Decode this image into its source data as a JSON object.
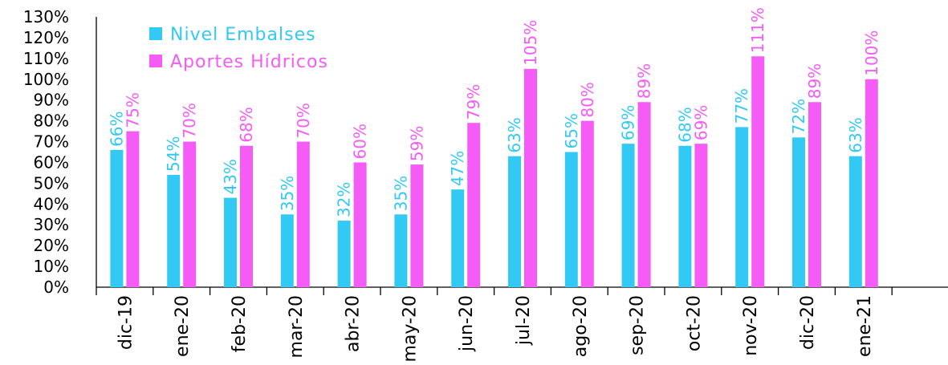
{
  "chart_data": {
    "type": "bar",
    "categories": [
      "dic-19",
      "ene-20",
      "feb-20",
      "mar-20",
      "abr-20",
      "may-20",
      "jun-20",
      "jul-20",
      "ago-20",
      "sep-20",
      "oct-20",
      "nov-20",
      "dic-20",
      "ene-21"
    ],
    "series": [
      {
        "name": "Nivel Embalses",
        "color": "#33c9f5",
        "values": [
          66,
          54,
          43,
          35,
          32,
          35,
          47,
          63,
          65,
          69,
          68,
          77,
          72,
          63
        ],
        "labels": [
          "66%",
          "54%",
          "43%",
          "35%",
          "32%",
          "35%",
          "47%",
          "63%",
          "65%",
          "69%",
          "68%",
          "77%",
          "72%",
          "63%"
        ]
      },
      {
        "name": "Aportes Hídricos",
        "color": "#f55cf5",
        "values": [
          75,
          70,
          68,
          70,
          60,
          59,
          79,
          105,
          80,
          89,
          69,
          111,
          89,
          100
        ],
        "labels": [
          "75%",
          "70%",
          "68%",
          "70%",
          "60%",
          "59%",
          "79%",
          "105%",
          "80%",
          "89%",
          "69%",
          "111%",
          "89%",
          "100%"
        ]
      }
    ],
    "y_ticks": [
      "0%",
      "10%",
      "20%",
      "30%",
      "40%",
      "50%",
      "60%",
      "70%",
      "80%",
      "90%",
      "100%",
      "110%",
      "120%",
      "130%"
    ],
    "ylim": [
      0,
      130
    ],
    "legend_position": "top-left",
    "grid": false,
    "title": "",
    "xlabel": "",
    "ylabel": ""
  }
}
